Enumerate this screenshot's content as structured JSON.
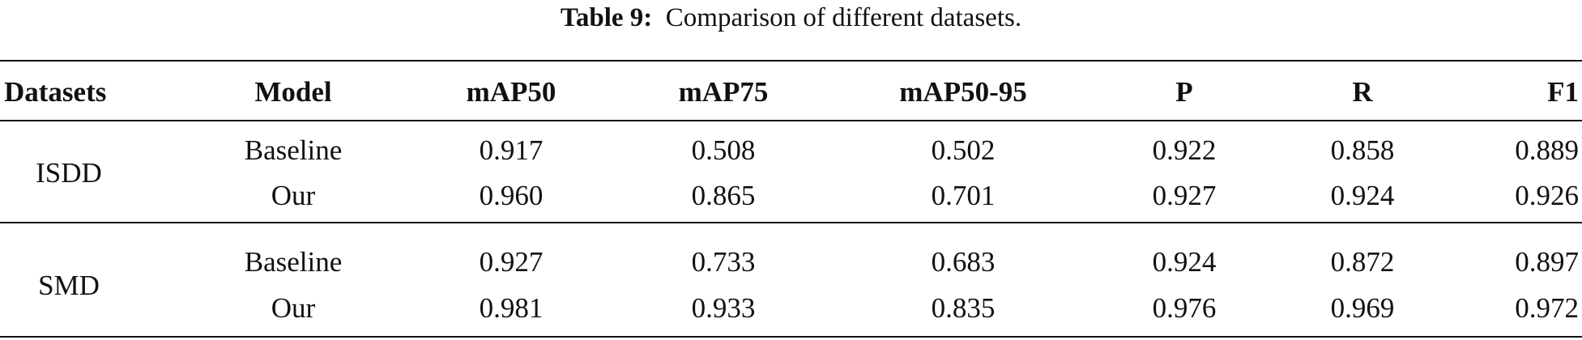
{
  "caption": {
    "label": "Table 9:",
    "text": "Comparison of different datasets."
  },
  "table": {
    "header": [
      "Datasets",
      "Model",
      "mAP50",
      "mAP75",
      "mAP50-95",
      "P",
      "R",
      "F1"
    ],
    "groups": [
      {
        "dataset": "ISDD",
        "rows": [
          [
            "Baseline",
            "0.917",
            "0.508",
            "0.502",
            "0.922",
            "0.858",
            "0.889"
          ],
          [
            "Our",
            "0.960",
            "0.865",
            "0.701",
            "0.927",
            "0.924",
            "0.926"
          ]
        ]
      },
      {
        "dataset": "SMD",
        "rows": [
          [
            "Baseline",
            "0.927",
            "0.733",
            "0.683",
            "0.924",
            "0.872",
            "0.897"
          ],
          [
            "Our",
            "0.981",
            "0.933",
            "0.835",
            "0.976",
            "0.969",
            "0.972"
          ]
        ]
      }
    ]
  }
}
